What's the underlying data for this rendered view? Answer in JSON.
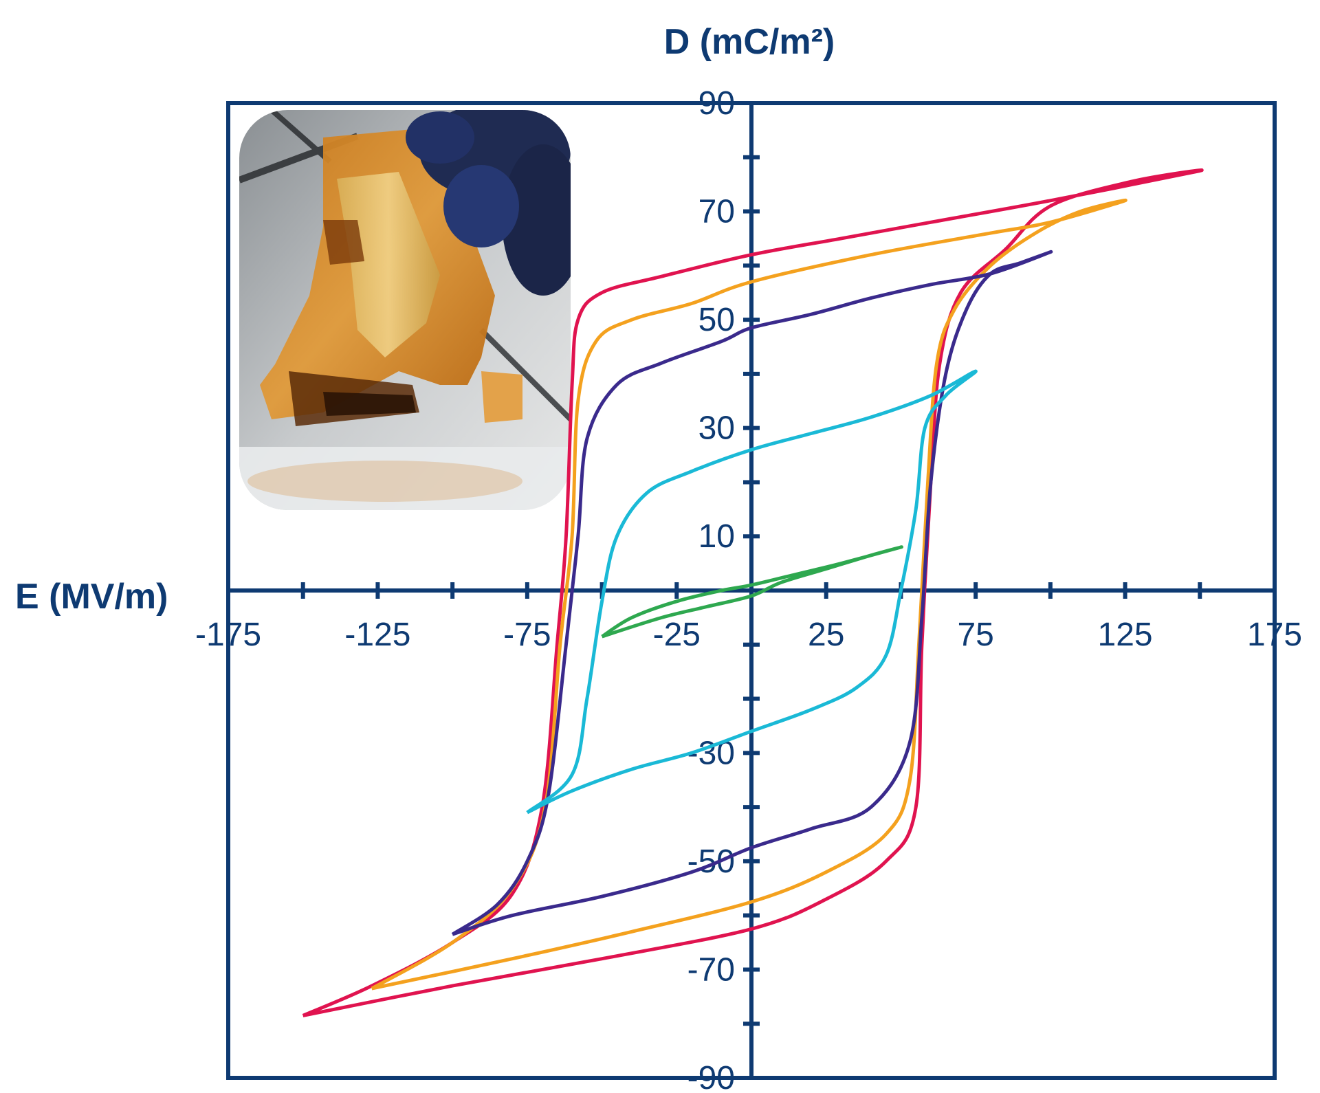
{
  "chart_data": {
    "type": "line",
    "title": "",
    "xlabel": "E (MV/m)",
    "ylabel": "D (mC/m²)",
    "xlim": [
      -175,
      175
    ],
    "ylim": [
      -90,
      90
    ],
    "x_ticks": [
      -175,
      -125,
      -75,
      -25,
      25,
      75,
      125,
      175
    ],
    "y_ticks": [
      90,
      70,
      50,
      30,
      10,
      -30,
      -50,
      -70,
      -90
    ],
    "x_tick_labels": [
      "-175",
      "-125",
      "-75",
      "-25",
      "25",
      "75",
      "125",
      "175"
    ],
    "y_tick_labels": [
      "90",
      "70",
      "50",
      "30",
      "10",
      "-30",
      "-50",
      "-70",
      "-90"
    ],
    "grid": false,
    "frame_color": "#0e3a72",
    "inset": "photo of a flexible orange film with gold electrodes held by a dark-gloved hand",
    "series": [
      {
        "color": "#e0134f",
        "points": [
          [
            -150,
            -78.5
          ],
          [
            -127,
            -73
          ],
          [
            -100,
            -65
          ],
          [
            -80,
            -56
          ],
          [
            -70,
            -40
          ],
          [
            -65,
            -10
          ],
          [
            -62,
            10
          ],
          [
            -60,
            38
          ],
          [
            -58,
            50
          ],
          [
            -50,
            55
          ],
          [
            -30,
            58
          ],
          [
            0,
            62
          ],
          [
            30,
            65
          ],
          [
            60,
            68
          ],
          [
            100,
            72
          ],
          [
            150,
            77.5
          ],
          [
            127,
            75.5
          ],
          [
            100,
            71
          ],
          [
            85,
            63
          ],
          [
            70,
            55
          ],
          [
            63,
            42
          ],
          [
            60,
            20
          ],
          [
            57,
            -10
          ],
          [
            55,
            -40
          ],
          [
            45,
            -50
          ],
          [
            25,
            -57
          ],
          [
            0,
            -62.5
          ],
          [
            -50,
            -68
          ],
          [
            -100,
            -73
          ],
          [
            -150,
            -78.5
          ]
        ]
      },
      {
        "color": "#f4a11e",
        "points": [
          [
            -127,
            -73.5
          ],
          [
            -100,
            -65
          ],
          [
            -80,
            -55
          ],
          [
            -69,
            -40
          ],
          [
            -64,
            -10
          ],
          [
            -60,
            10
          ],
          [
            -58,
            35
          ],
          [
            -52,
            46
          ],
          [
            -40,
            50
          ],
          [
            -20,
            53
          ],
          [
            0,
            57
          ],
          [
            40,
            62
          ],
          [
            80,
            66
          ],
          [
            100,
            68
          ],
          [
            125,
            72
          ],
          [
            110,
            70
          ],
          [
            95,
            66
          ],
          [
            80,
            60
          ],
          [
            68,
            52
          ],
          [
            62,
            42
          ],
          [
            59,
            20
          ],
          [
            56,
            -10
          ],
          [
            53,
            -35
          ],
          [
            45,
            -45
          ],
          [
            25,
            -52
          ],
          [
            0,
            -57.5
          ],
          [
            -40,
            -63
          ],
          [
            -80,
            -68
          ],
          [
            -127,
            -73.5
          ]
        ]
      },
      {
        "color": "#3a2a8c",
        "points": [
          [
            -100,
            -63.5
          ],
          [
            -85,
            -58
          ],
          [
            -75,
            -50
          ],
          [
            -68,
            -38
          ],
          [
            -62,
            -10
          ],
          [
            -58,
            10
          ],
          [
            -55,
            28
          ],
          [
            -45,
            38
          ],
          [
            -30,
            42
          ],
          [
            -10,
            46
          ],
          [
            0,
            48.5
          ],
          [
            20,
            51
          ],
          [
            40,
            54
          ],
          [
            60,
            56.5
          ],
          [
            80,
            58.5
          ],
          [
            100,
            62.5
          ],
          [
            90,
            60.5
          ],
          [
            80,
            58.5
          ],
          [
            72,
            52
          ],
          [
            65,
            40
          ],
          [
            60,
            20
          ],
          [
            57,
            -5
          ],
          [
            53,
            -28
          ],
          [
            40,
            -40
          ],
          [
            20,
            -44
          ],
          [
            0,
            -47.5
          ],
          [
            -20,
            -52
          ],
          [
            -50,
            -56.5
          ],
          [
            -80,
            -60
          ],
          [
            -100,
            -63.5
          ]
        ]
      },
      {
        "color": "#1ab9d6",
        "points": [
          [
            -75,
            -41
          ],
          [
            -60,
            -34
          ],
          [
            -55,
            -20
          ],
          [
            -50,
            -2
          ],
          [
            -45,
            10
          ],
          [
            -35,
            18
          ],
          [
            -20,
            22
          ],
          [
            0,
            26
          ],
          [
            20,
            29
          ],
          [
            40,
            32
          ],
          [
            60,
            36
          ],
          [
            75,
            40.5
          ],
          [
            65,
            36
          ],
          [
            58,
            30
          ],
          [
            55,
            15
          ],
          [
            50,
            0
          ],
          [
            45,
            -12
          ],
          [
            35,
            -18
          ],
          [
            20,
            -22
          ],
          [
            0,
            -26
          ],
          [
            -20,
            -30
          ],
          [
            -40,
            -33
          ],
          [
            -60,
            -37
          ],
          [
            -75,
            -41
          ]
        ]
      },
      {
        "color": "#2ea84f",
        "points": [
          [
            -50,
            -8.5
          ],
          [
            -40,
            -5
          ],
          [
            -25,
            -2
          ],
          [
            -10,
            0
          ],
          [
            0,
            1
          ],
          [
            15,
            3
          ],
          [
            30,
            5
          ],
          [
            50,
            8
          ],
          [
            40,
            6.5
          ],
          [
            25,
            4
          ],
          [
            10,
            1.5
          ],
          [
            0,
            -1
          ],
          [
            -15,
            -3
          ],
          [
            -30,
            -5
          ],
          [
            -50,
            -8.5
          ]
        ]
      }
    ]
  }
}
